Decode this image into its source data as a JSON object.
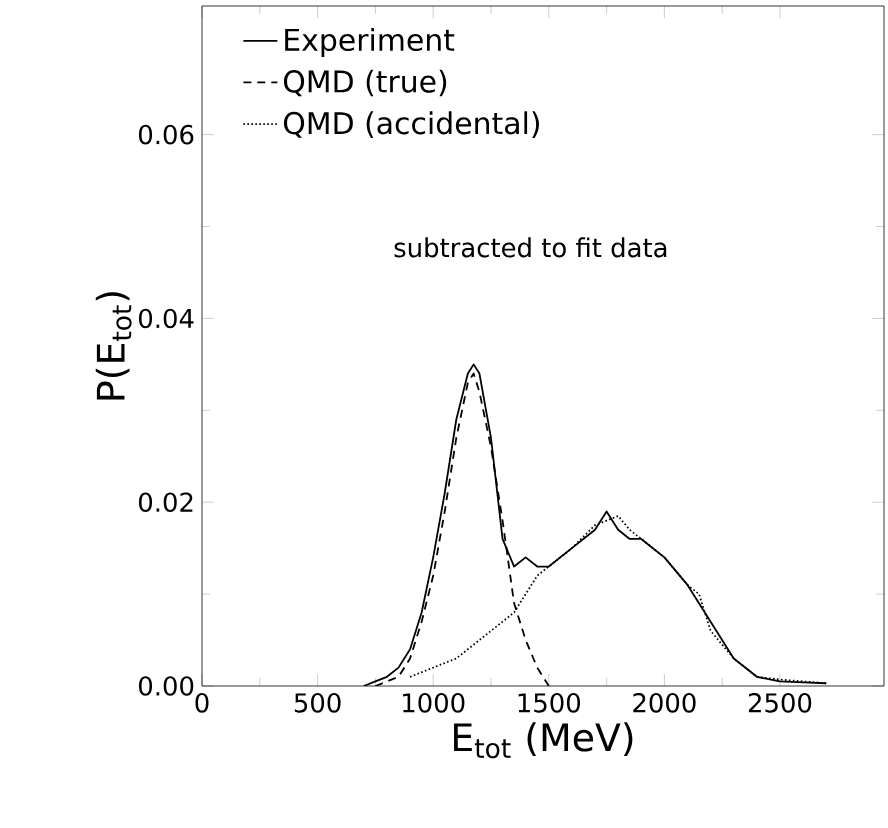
{
  "chart_data": {
    "type": "line",
    "xlabel": "E$_{tot}$  (MeV)",
    "ylabel": "P(E$_{tot}$)",
    "xlim": [
      0,
      2950
    ],
    "ylim": [
      0,
      0.074
    ],
    "xticks": [
      0,
      500,
      1000,
      1500,
      2000,
      2500
    ],
    "yticks": [
      {
        "value": 0,
        "label": "0.00"
      },
      {
        "value": 0.02,
        "label": "0.02"
      },
      {
        "value": 0.04,
        "label": "0.04"
      },
      {
        "value": 0.06,
        "label": "0.06"
      }
    ],
    "legend": "top left",
    "annotations": [
      "subtracted to fit data"
    ],
    "series": [
      {
        "name": "Experiment",
        "color": "#000000",
        "line_style": "solid",
        "x": [
          700,
          750,
          800,
          850,
          900,
          950,
          1000,
          1050,
          1100,
          1150,
          1175,
          1200,
          1250,
          1300,
          1350,
          1400,
          1450,
          1500,
          1600,
          1700,
          1750,
          1800,
          1850,
          1900,
          2000,
          2100,
          2200,
          2300,
          2400,
          2500,
          2600,
          2700
        ],
        "values": [
          0,
          0.0005,
          0.001,
          0.002,
          0.004,
          0.008,
          0.014,
          0.021,
          0.029,
          0.034,
          0.035,
          0.034,
          0.027,
          0.016,
          0.013,
          0.014,
          0.013,
          0.013,
          0.015,
          0.017,
          0.019,
          0.017,
          0.016,
          0.016,
          0.014,
          0.011,
          0.007,
          0.003,
          0.001,
          0.0005,
          0.0004,
          0.0003
        ]
      },
      {
        "name": "QMD (true)",
        "color": "#000000",
        "line_style": "dashed",
        "x": [
          750,
          800,
          850,
          900,
          950,
          1000,
          1050,
          1100,
          1150,
          1175,
          1200,
          1250,
          1300,
          1350,
          1400,
          1450,
          1500
        ],
        "values": [
          0,
          0.0005,
          0.001,
          0.003,
          0.007,
          0.012,
          0.019,
          0.027,
          0.033,
          0.034,
          0.032,
          0.026,
          0.018,
          0.009,
          0.005,
          0.002,
          0
        ]
      },
      {
        "name": "QMD (accidental)",
        "color": "#000000",
        "line_style": "dotted",
        "x": [
          900,
          1000,
          1100,
          1200,
          1300,
          1350,
          1400,
          1450,
          1500,
          1600,
          1700,
          1750,
          1800,
          1850,
          1900,
          2000,
          2100,
          2150,
          2200,
          2300,
          2400,
          2500,
          2600,
          2700
        ],
        "values": [
          0.001,
          0.002,
          0.003,
          0.005,
          0.007,
          0.008,
          0.01,
          0.012,
          0.013,
          0.015,
          0.0175,
          0.018,
          0.0185,
          0.017,
          0.016,
          0.014,
          0.011,
          0.01,
          0.006,
          0.003,
          0.001,
          0.0007,
          0.0005,
          0.0003
        ]
      }
    ]
  }
}
